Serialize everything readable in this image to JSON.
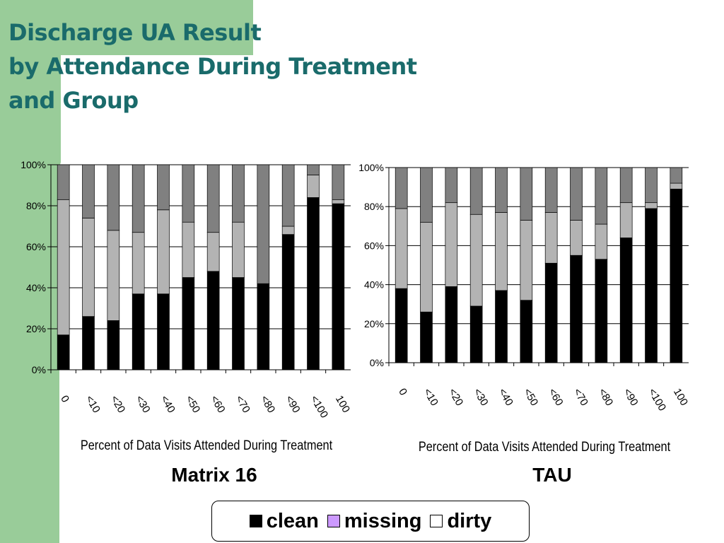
{
  "slide": {
    "title_lines": [
      "Discharge UA Result",
      "by Attendance During Treatment",
      "and Group"
    ],
    "colors": {
      "title": "#1a6b6b",
      "background_band": "#99cc99"
    }
  },
  "legend": {
    "items": [
      {
        "label": "clean",
        "color": "#000000"
      },
      {
        "label": "missing",
        "color": "#cc99ff"
      },
      {
        "label": "dirty",
        "color": "#ffffff"
      }
    ]
  },
  "chart_data": [
    {
      "type": "bar",
      "stacked": "percent",
      "group_label": "Matrix 16",
      "xlabel": "Percent of Data Visits Attended During Treatment",
      "ylabel": "",
      "categories": [
        "0",
        "<10",
        "<20",
        "<30",
        "<40",
        "<50",
        "<60",
        "<70",
        "<80",
        "<90",
        "<100",
        "100"
      ],
      "y_ticks": [
        "0%",
        "20%",
        "40%",
        "60%",
        "80%",
        "100%"
      ],
      "ylim": [
        0,
        100
      ],
      "grid": true,
      "series": [
        {
          "name": "clean",
          "color": "#000000",
          "values": [
            17,
            26,
            24,
            37,
            37,
            45,
            48,
            45,
            42,
            66,
            84,
            81
          ]
        },
        {
          "name": "missing",
          "color": "#b3b3b3",
          "values": [
            66,
            48,
            44,
            30,
            41,
            27,
            19,
            27,
            0,
            4,
            11,
            2
          ]
        },
        {
          "name": "dirty",
          "color": "#808080",
          "values": [
            17,
            26,
            32,
            33,
            22,
            28,
            33,
            28,
            58,
            30,
            5,
            17
          ]
        }
      ]
    },
    {
      "type": "bar",
      "stacked": "percent",
      "group_label": "TAU",
      "xlabel": "Percent of Data Visits Attended During Treatment",
      "ylabel": "",
      "categories": [
        "0",
        "<10",
        "<20",
        "<30",
        "<40",
        "<50",
        "<60",
        "<70",
        "<80",
        "<90",
        "<100",
        "100"
      ],
      "y_ticks": [
        "0%",
        "20%",
        "40%",
        "60%",
        "80%",
        "100%"
      ],
      "ylim": [
        0,
        100
      ],
      "grid": true,
      "series": [
        {
          "name": "clean",
          "color": "#000000",
          "values": [
            38,
            26,
            39,
            29,
            37,
            32,
            51,
            55,
            53,
            64,
            79,
            89
          ]
        },
        {
          "name": "missing",
          "color": "#b3b3b3",
          "values": [
            41,
            46,
            43,
            47,
            40,
            41,
            26,
            18,
            18,
            18,
            3,
            3
          ]
        },
        {
          "name": "dirty",
          "color": "#808080",
          "values": [
            21,
            28,
            18,
            24,
            23,
            27,
            23,
            27,
            29,
            18,
            18,
            8
          ]
        }
      ]
    }
  ]
}
